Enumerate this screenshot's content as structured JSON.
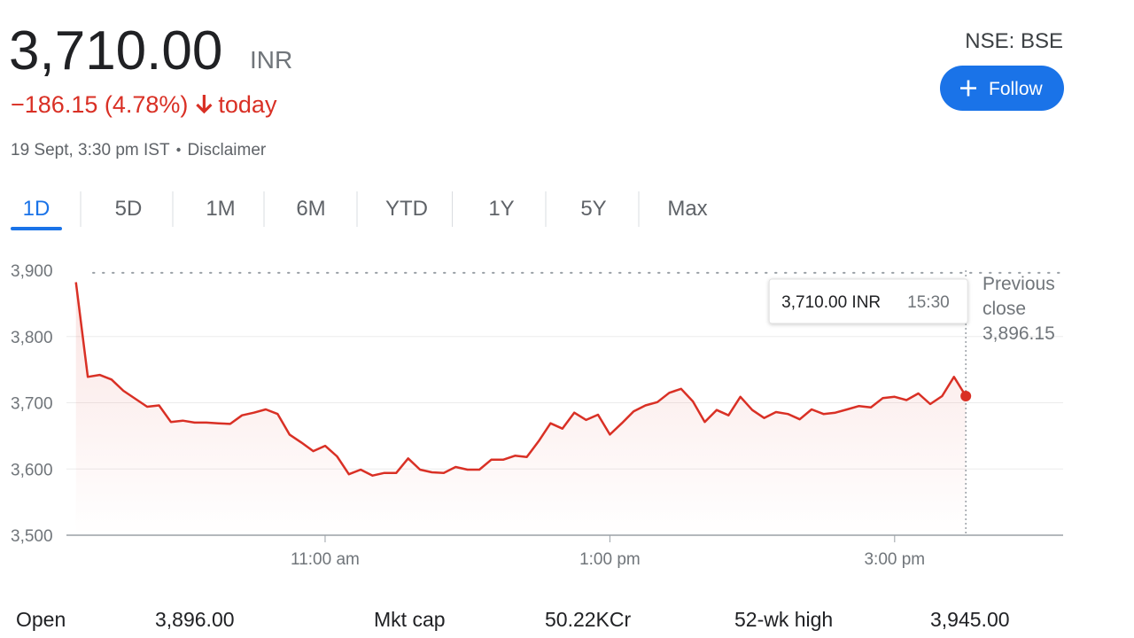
{
  "header": {
    "price": "3,710.00",
    "currency": "INR",
    "change": "−186.15 (4.78%)",
    "change_period": "today",
    "timestamp": "19 Sept, 3:30 pm IST",
    "disclaimer": "Disclaimer",
    "exchange": "NSE: BSE",
    "follow": "Follow"
  },
  "tabs": [
    "1D",
    "5D",
    "1M",
    "6M",
    "YTD",
    "1Y",
    "5Y",
    "Max"
  ],
  "active_tab": 0,
  "chart_data": {
    "type": "line",
    "x": [
      "09:15",
      "09:20",
      "09:25",
      "09:30",
      "09:35",
      "09:40",
      "09:45",
      "09:50",
      "09:55",
      "10:00",
      "10:05",
      "10:10",
      "10:15",
      "10:20",
      "10:25",
      "10:30",
      "10:35",
      "10:40",
      "10:45",
      "10:50",
      "10:55",
      "11:00",
      "11:05",
      "11:10",
      "11:15",
      "11:20",
      "11:25",
      "11:30",
      "11:35",
      "11:40",
      "11:45",
      "11:50",
      "11:55",
      "12:00",
      "12:05",
      "12:10",
      "12:15",
      "12:20",
      "12:25",
      "12:30",
      "12:35",
      "12:40",
      "12:45",
      "12:50",
      "12:55",
      "13:00",
      "13:05",
      "13:10",
      "13:15",
      "13:20",
      "13:25",
      "13:30",
      "13:35",
      "13:40",
      "13:45",
      "13:50",
      "13:55",
      "14:00",
      "14:05",
      "14:10",
      "14:15",
      "14:20",
      "14:25",
      "14:30",
      "14:35",
      "14:40",
      "14:45",
      "14:50",
      "14:55",
      "15:00",
      "15:05",
      "15:10",
      "15:15",
      "15:20",
      "15:25",
      "15:30"
    ],
    "values": [
      3882,
      3739,
      3742,
      3735,
      3718,
      3706,
      3694,
      3696,
      3671,
      3673,
      3670,
      3670,
      3669,
      3668,
      3681,
      3685,
      3690,
      3683,
      3652,
      3640,
      3627,
      3635,
      3619,
      3592,
      3599,
      3590,
      3594,
      3594,
      3616,
      3599,
      3595,
      3594,
      3603,
      3599,
      3599,
      3614,
      3614,
      3620,
      3618,
      3642,
      3669,
      3661,
      3685,
      3674,
      3682,
      3652,
      3669,
      3687,
      3696,
      3701,
      3715,
      3721,
      3702,
      3671,
      3689,
      3681,
      3709,
      3689,
      3677,
      3686,
      3683,
      3675,
      3690,
      3683,
      3685,
      3690,
      3695,
      3693,
      3707,
      3709,
      3704,
      3714,
      3698,
      3710,
      3739,
      3710
    ],
    "color": "#d93025",
    "xlim": [
      "09:11",
      "16:11"
    ],
    "xticks": [
      {
        "value": "11:00",
        "label": "11:00 am"
      },
      {
        "value": "13:00",
        "label": "1:00 pm"
      },
      {
        "value": "15:00",
        "label": "3:00 pm"
      }
    ],
    "ylim": [
      3500,
      3900
    ],
    "yticks": [
      {
        "value": 3500,
        "label": "3,500"
      },
      {
        "value": 3600,
        "label": "3,600"
      },
      {
        "value": 3700,
        "label": "3,700"
      },
      {
        "value": 3800,
        "label": "3,800"
      },
      {
        "value": 3900,
        "label": "3,900"
      }
    ],
    "grid": true,
    "previous_close": {
      "value": 3896.15,
      "label": "3,896.15"
    },
    "previous_close_title": "Previous close",
    "tooltip": {
      "value": "3,710.00 INR",
      "time": "15:30"
    }
  },
  "stats": [
    {
      "label": "Open",
      "value": "3,896.00"
    },
    {
      "label": "Mkt cap",
      "value": "50.22KCr"
    },
    {
      "label": "52-wk high",
      "value": "3,945.00"
    }
  ]
}
